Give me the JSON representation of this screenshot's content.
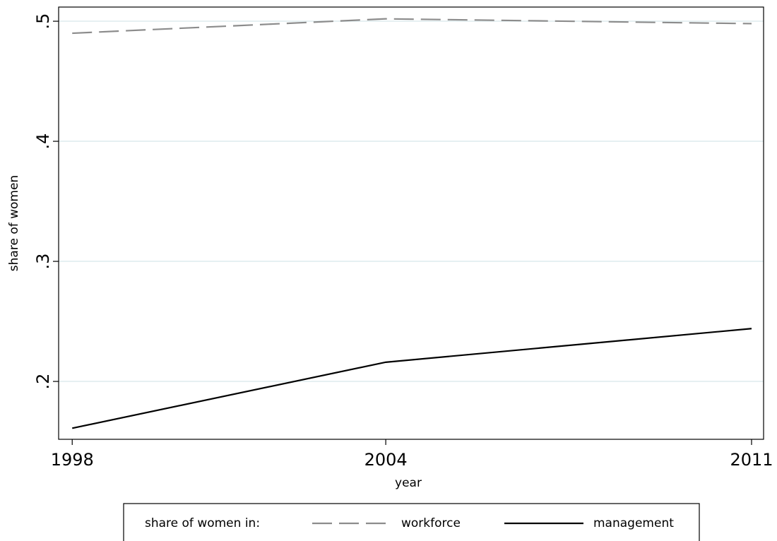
{
  "chart_data": {
    "type": "line",
    "x_label": "year",
    "y_label": "share of women",
    "x": [
      1998,
      2004,
      2011
    ],
    "series": [
      {
        "name": "workforce",
        "color": "#8c8c8c",
        "dash": true,
        "values": [
          0.49,
          0.502,
          0.498
        ]
      },
      {
        "name": "management",
        "color": "#000000",
        "dash": false,
        "values": [
          0.161,
          0.216,
          0.244
        ]
      }
    ],
    "legend_title": "share of women in:",
    "legend_position": "bottom",
    "xlim": [
      1997.74,
      2011.23
    ],
    "xticks": [
      1998,
      2004,
      2011
    ],
    "ylim": [
      0.1518,
      0.5118
    ],
    "yticks": [
      {
        "value": 0.2,
        "label": ".2"
      },
      {
        "value": 0.3,
        "label": ".3"
      },
      {
        "value": 0.4,
        "label": ".4"
      },
      {
        "value": 0.5,
        "label": ".5"
      }
    ],
    "grid": true,
    "grid_color": "#e6f0f2"
  }
}
